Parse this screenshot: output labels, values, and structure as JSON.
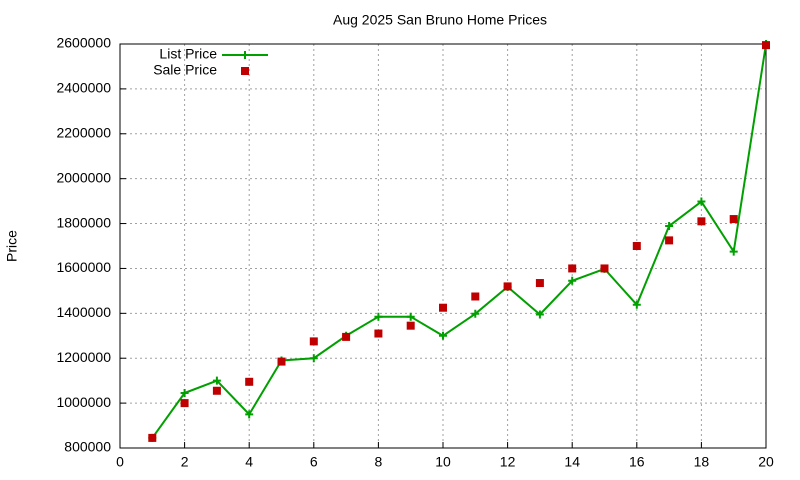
{
  "chart_data": {
    "type": "line",
    "title": "Aug 2025 San Bruno Home Prices",
    "y_label": "Price",
    "x": [
      1,
      2,
      3,
      4,
      5,
      6,
      7,
      8,
      9,
      10,
      11,
      12,
      13,
      14,
      15,
      16,
      17,
      18,
      19,
      20
    ],
    "series": [
      {
        "name": "List Price",
        "color": "#00a000",
        "style": "linespoints",
        "values": [
          845000,
          1045000,
          1100000,
          950000,
          1190000,
          1200000,
          1300000,
          1385000,
          1385000,
          1300000,
          1398000,
          1518000,
          1395000,
          1545000,
          1598000,
          1438000,
          1789000,
          1898000,
          1675000,
          2600000
        ]
      },
      {
        "name": "Sale Price",
        "color": "#c00000",
        "style": "points",
        "values": [
          845000,
          1000000,
          1055000,
          1095000,
          1185000,
          1275000,
          1295000,
          1310000,
          1345000,
          1425000,
          1475000,
          1520000,
          1535000,
          1600000,
          1600000,
          1700000,
          1725000,
          1810000,
          1820000,
          2595000
        ]
      }
    ],
    "xlim": [
      0,
      20
    ],
    "xticks": [
      0,
      2,
      4,
      6,
      8,
      10,
      12,
      14,
      16,
      18,
      20
    ],
    "ylim": [
      800000,
      2600000
    ],
    "yticks": [
      800000,
      1000000,
      1200000,
      1400000,
      1600000,
      1800000,
      2000000,
      2200000,
      2400000,
      2600000
    ],
    "grid": true,
    "legend": "top-left"
  }
}
